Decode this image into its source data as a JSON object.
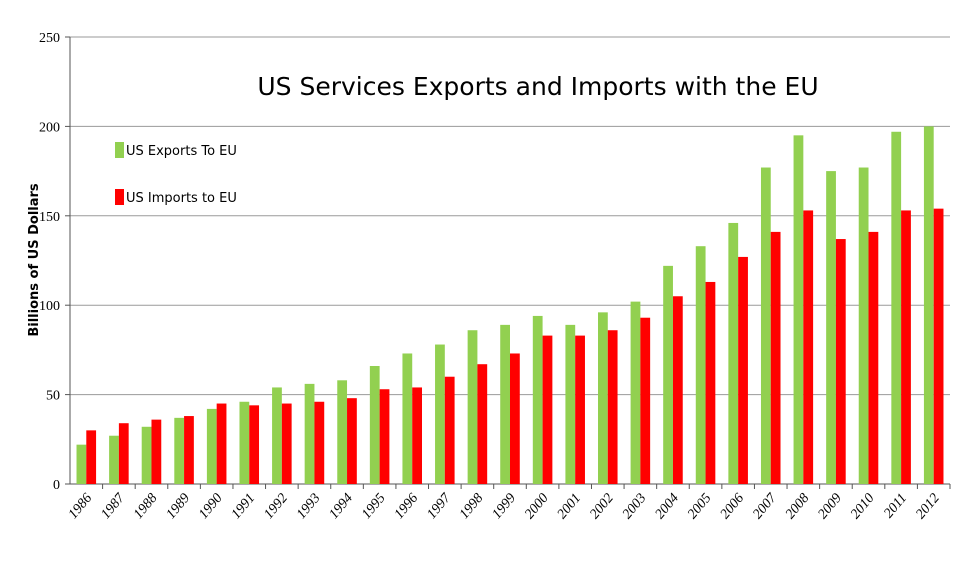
{
  "chart_data": {
    "type": "bar",
    "title": "US Services Exports and Imports with the EU",
    "y_label": "Billions of US Dollars",
    "categories": [
      "1986",
      "1987",
      "1988",
      "1989",
      "1990",
      "1991",
      "1992",
      "1993",
      "1994",
      "1995",
      "1996",
      "1997",
      "1998",
      "1999",
      "2000",
      "2001",
      "2002",
      "2003",
      "2004",
      "2005",
      "2006",
      "2007",
      "2008",
      "2009",
      "2010",
      "2011",
      "2012"
    ],
    "series": [
      {
        "name": "US Exports To EU",
        "color": "#92d050",
        "values": [
          22,
          27,
          32,
          37,
          42,
          46,
          54,
          56,
          58,
          66,
          73,
          78,
          86,
          89,
          94,
          89,
          96,
          102,
          122,
          133,
          146,
          177,
          195,
          175,
          177,
          197,
          200
        ]
      },
      {
        "name": "US Imports to EU",
        "color": "#ff0000",
        "values": [
          30,
          34,
          36,
          38,
          45,
          44,
          45,
          46,
          48,
          53,
          54,
          60,
          67,
          73,
          83,
          83,
          86,
          93,
          105,
          113,
          127,
          141,
          153,
          137,
          141,
          153,
          154
        ]
      }
    ],
    "ylim": [
      0,
      250
    ],
    "yticks": [
      0,
      50,
      100,
      150,
      200,
      250
    ],
    "grid": true,
    "legend": "upper left"
  }
}
